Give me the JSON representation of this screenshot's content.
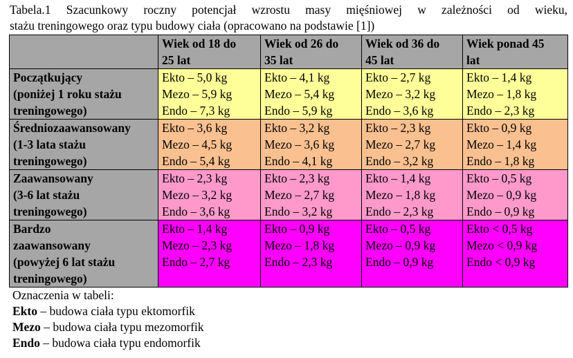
{
  "caption": {
    "line1": "Tabela.1 Szacunkowy roczny potencjał wzrostu masy mięśniowej w zależności od wieku,",
    "line2": "stażu treningowego oraz typu budowy ciała (opracowano na podstawie [1])"
  },
  "table": {
    "columns": [
      {
        "line1": "Wiek od 18 do",
        "line2": "25 lat"
      },
      {
        "line1": "Wiek od 26 do",
        "line2": "35 lat"
      },
      {
        "line1": "Wiek od 36 do",
        "line2": "45 lat"
      },
      {
        "line1": "Wiek ponad 45",
        "line2": "lat"
      }
    ],
    "rows": [
      {
        "label": [
          "Początkujący",
          "(poniżej 1 roku stażu",
          "treningowego)"
        ],
        "color": "#ffff99",
        "cells": [
          [
            "Ekto – 5,0 kg",
            "Mezo – 5,9 kg",
            "Endo – 7,3 kg"
          ],
          [
            "Ekto – 4,1 kg",
            "Mezo – 5,4 kg",
            "Endo – 5,9 kg"
          ],
          [
            "Ekto – 2,7 kg",
            "Mezo – 3,2 kg",
            "Endo – 3,6 kg"
          ],
          [
            "Ekto – 1,4 kg",
            "Mezo – 1,8 kg",
            "Endo – 2,3 kg"
          ]
        ]
      },
      {
        "label": [
          "Średniozaawansowany",
          "(1-3 lata stażu",
          "treningowego)"
        ],
        "color": "#fac090",
        "cells": [
          [
            "Ekto – 3,6 kg",
            "Mezo – 4,5 kg",
            "Endo – 5,4 kg"
          ],
          [
            "Ekto – 3,2 kg",
            "Mezo – 3,6 kg",
            "Endo – 4,1 kg"
          ],
          [
            "Ekto – 2,3 kg",
            "Mezo – 2,7 kg",
            "Endo – 3,2 kg"
          ],
          [
            "Ekto – 0,9 kg",
            "Mezo – 1,4 kg",
            "Endo – 1,8 kg"
          ]
        ]
      },
      {
        "label": [
          "Zaawansowany",
          "(3-6 lat stażu",
          "treningowego)"
        ],
        "color": "#ff99cc",
        "cells": [
          [
            "Ekto – 2,3 kg",
            "Mezo – 3,2 kg",
            "Endo – 3,6 kg"
          ],
          [
            "Ekto – 2,3 kg",
            "Mezo – 2,7 kg",
            "Endo – 3,2 kg"
          ],
          [
            "Ekto – 1,4 kg",
            "Mezo – 1,8 kg",
            "Endo – 2,3 kg"
          ],
          [
            "Ekto – 0,5 kg",
            "Mezo – 0,9 kg",
            "Endo – 0,9 kg"
          ]
        ]
      },
      {
        "label": [
          "Bardzo",
          "zaawansowany",
          "(powyżej 6 lat stażu",
          "treningowego)"
        ],
        "color": "#ff00ff",
        "cells": [
          [
            "Ekto – 1,4 kg",
            "Mezo – 2,3 kg",
            "Endo – 2,7 kg"
          ],
          [
            "Ekto – 0,9 kg",
            "Mezo – 1,8 kg",
            "Endo – 2,3 kg"
          ],
          [
            "Ekto – 0,5 kg",
            "Mezo – 0,9 kg",
            "Endo – 0,9 kg"
          ],
          [
            "Ekto < 0,5 kg",
            "Mezo < 0,9 kg",
            "Endo < 0,9 kg"
          ]
        ]
      }
    ]
  },
  "legend": {
    "title": "Oznaczenia w tabeli:",
    "items": [
      {
        "term": "Ekto",
        "desc": " – budowa ciała typu ektomorfik"
      },
      {
        "term": "Mezo",
        "desc": " – budowa ciała typu mezomorfik"
      },
      {
        "term": "Endo",
        "desc": " – budowa ciała typu endomorfik"
      }
    ]
  }
}
